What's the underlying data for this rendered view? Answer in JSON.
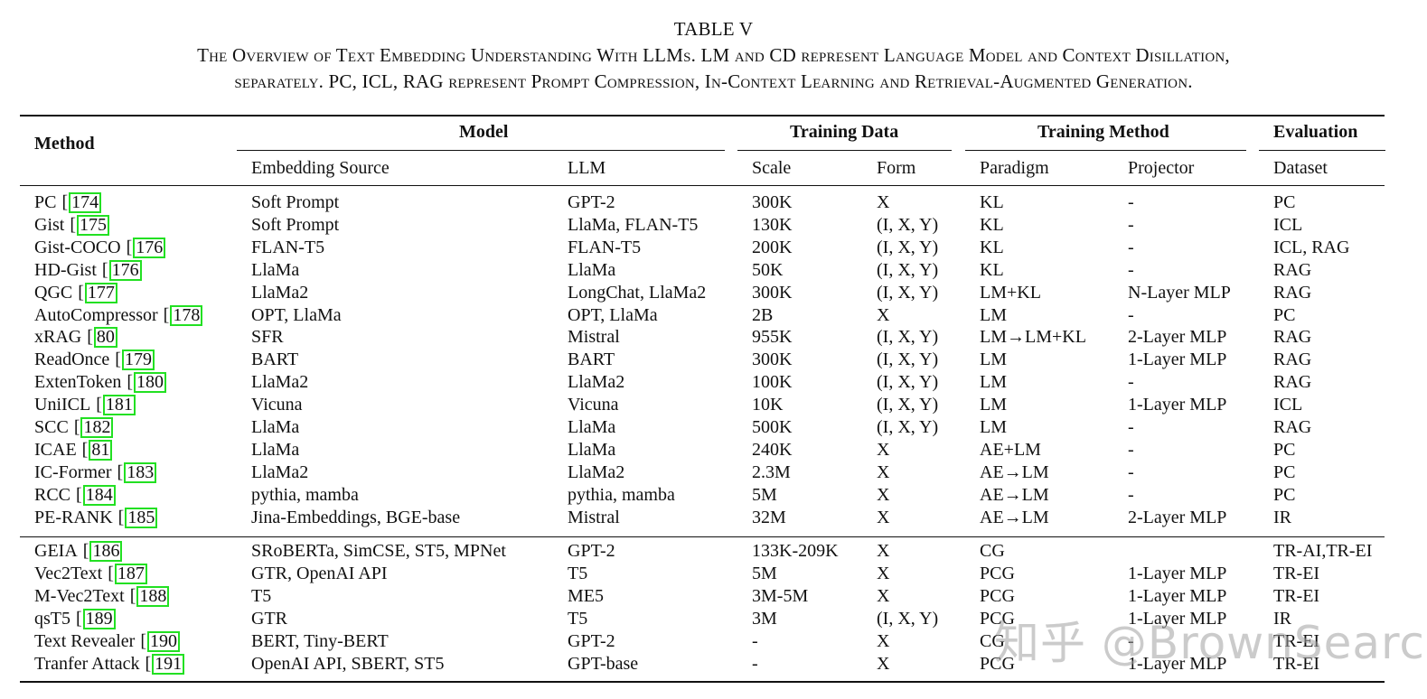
{
  "caption": {
    "table_number": "TABLE V",
    "line1": "The Overview of Text Embedding Understanding With LLMs. LM and CD represent Language Model and Context Disillation,",
    "line2": "separately. PC, ICL, RAG represent Prompt Compression, In-Context Learning and Retrieval-Augmented Generation."
  },
  "header": {
    "method": "Method",
    "groups": {
      "model": "Model",
      "training_data": "Training Data",
      "training_method": "Training Method",
      "evaluation": "Evaluation"
    },
    "columns": {
      "embedding_source": "Embedding Source",
      "llm": "LLM",
      "scale": "Scale",
      "form": "Form",
      "paradigm": "Paradigm",
      "projector": "Projector",
      "dataset": "Dataset"
    }
  },
  "rows": [
    {
      "method": "PC",
      "cite": "174",
      "embedding_source": "Soft Prompt",
      "llm": "GPT-2",
      "scale": "300K",
      "form": "X",
      "paradigm": "KL",
      "projector": "-",
      "dataset": "PC"
    },
    {
      "method": "Gist",
      "cite": "175",
      "embedding_source": "Soft Prompt",
      "llm": "LlaMa, FLAN-T5",
      "scale": "130K",
      "form": "(I, X, Y)",
      "paradigm": "KL",
      "projector": "-",
      "dataset": "ICL"
    },
    {
      "method": "Gist-COCO",
      "cite": "176",
      "embedding_source": "FLAN-T5",
      "llm": "FLAN-T5",
      "scale": "200K",
      "form": "(I, X, Y)",
      "paradigm": "KL",
      "projector": "-",
      "dataset": "ICL, RAG"
    },
    {
      "method": "HD-Gist",
      "cite": "176",
      "embedding_source": "LlaMa",
      "llm": "LlaMa",
      "scale": "50K",
      "form": "(I, X, Y)",
      "paradigm": "KL",
      "projector": "-",
      "dataset": "RAG"
    },
    {
      "method": "QGC",
      "cite": "177",
      "embedding_source": "LlaMa2",
      "llm": "LongChat, LlaMa2",
      "scale": "300K",
      "form": "(I, X, Y)",
      "paradigm": "LM+KL",
      "projector": "N-Layer MLP",
      "dataset": "RAG"
    },
    {
      "method": "AutoCompressor",
      "cite": "178",
      "embedding_source": "OPT, LlaMa",
      "llm": "OPT, LlaMa",
      "scale": "2B",
      "form": "X",
      "paradigm": "LM",
      "projector": "-",
      "dataset": "PC"
    },
    {
      "method": "xRAG",
      "cite": "80",
      "embedding_source": "SFR",
      "llm": "Mistral",
      "scale": "955K",
      "form": "(I, X, Y)",
      "paradigm": "LM→LM+KL",
      "projector": "2-Layer MLP",
      "dataset": "RAG"
    },
    {
      "method": "ReadOnce",
      "cite": "179",
      "embedding_source": "BART",
      "llm": "BART",
      "scale": "300K",
      "form": "(I, X, Y)",
      "paradigm": "LM",
      "projector": "1-Layer MLP",
      "dataset": "RAG"
    },
    {
      "method": "ExtenToken",
      "cite": "180",
      "embedding_source": "LlaMa2",
      "llm": "LlaMa2",
      "scale": "100K",
      "form": "(I, X, Y)",
      "paradigm": "LM",
      "projector": "-",
      "dataset": "RAG"
    },
    {
      "method": "UniICL",
      "cite": "181",
      "embedding_source": "Vicuna",
      "llm": "Vicuna",
      "scale": "10K",
      "form": "(I, X, Y)",
      "paradigm": "LM",
      "projector": "1-Layer MLP",
      "dataset": "ICL"
    },
    {
      "method": "SCC",
      "cite": "182",
      "embedding_source": "LlaMa",
      "llm": "LlaMa",
      "scale": "500K",
      "form": "(I, X, Y)",
      "paradigm": "LM",
      "projector": "-",
      "dataset": "RAG"
    },
    {
      "method": "ICAE",
      "cite": "81",
      "embedding_source": "LlaMa",
      "llm": "LlaMa",
      "scale": "240K",
      "form": "X",
      "paradigm": "AE+LM",
      "projector": "-",
      "dataset": "PC"
    },
    {
      "method": "IC-Former",
      "cite": "183",
      "embedding_source": "LlaMa2",
      "llm": "LlaMa2",
      "scale": "2.3M",
      "form": "X",
      "paradigm": "AE→LM",
      "projector": "-",
      "dataset": "PC"
    },
    {
      "method": "RCC",
      "cite": "184",
      "embedding_source": "pythia, mamba",
      "llm": "pythia, mamba",
      "scale": "5M",
      "form": "X",
      "paradigm": "AE→LM",
      "projector": "-",
      "dataset": "PC"
    },
    {
      "method": "PE-RANK",
      "cite": "185",
      "embedding_source": "Jina-Embeddings, BGE-base",
      "llm": "Mistral",
      "scale": "32M",
      "form": "X",
      "paradigm": "AE→LM",
      "projector": "2-Layer MLP",
      "dataset": "IR"
    }
  ],
  "rows2": [
    {
      "method": "GEIA",
      "cite": "186",
      "embedding_source": "SRoBERTa, SimCSE, ST5, MPNet",
      "llm": "GPT-2",
      "scale": "133K-209K",
      "form": "X",
      "paradigm": "CG",
      "projector": "",
      "dataset": "TR-AI,TR-EI"
    },
    {
      "method": "Vec2Text",
      "cite": "187",
      "embedding_source": "GTR, OpenAI API",
      "llm": "T5",
      "scale": "5M",
      "form": "X",
      "paradigm": "PCG",
      "projector": "1-Layer MLP",
      "dataset": "TR-EI"
    },
    {
      "method": "M-Vec2Text",
      "cite": "188",
      "embedding_source": "T5",
      "llm": "ME5",
      "scale": "3M-5M",
      "form": "X",
      "paradigm": "PCG",
      "projector": "1-Layer MLP",
      "dataset": "TR-EI"
    },
    {
      "method": "qsT5",
      "cite": "189",
      "embedding_source": "GTR",
      "llm": "T5",
      "scale": "3M",
      "form": "(I, X, Y)",
      "paradigm": "PCG",
      "projector": "1-Layer MLP",
      "dataset": "IR"
    },
    {
      "method": "Text Revealer",
      "cite": "190",
      "embedding_source": "BERT, Tiny-BERT",
      "llm": "GPT-2",
      "scale": "-",
      "form": "X",
      "paradigm": "CG",
      "projector": "-",
      "dataset": "TR-EI"
    },
    {
      "method": "Tranfer Attack",
      "cite": "191",
      "embedding_source": "OpenAI API, SBERT, ST5",
      "llm": "GPT-base",
      "scale": "-",
      "form": "X",
      "paradigm": "PCG",
      "projector": "1-Layer MLP",
      "dataset": "TR-EI"
    }
  ],
  "watermark": "知乎 @BrownSearch"
}
